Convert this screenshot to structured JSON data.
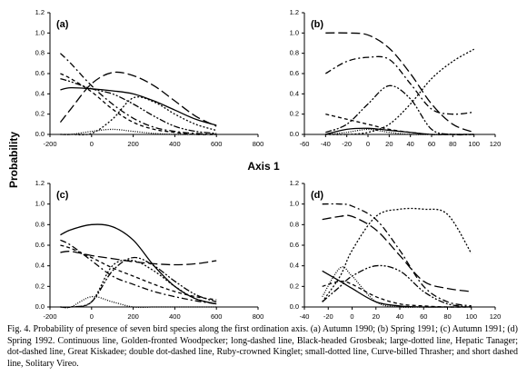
{
  "axis_title": "Axis 1",
  "y_title": "Probability",
  "caption": "Fig. 4. Probability of presence of seven bird species along the first ordination axis. (a) Autumn 1990; (b) Spring 1991; (c) Autumn 1991; (d) Spring 1992. Continuous line, Golden-fronted Woodpecker; long-dashed line, Black-headed Grosbeak; large-dotted line, Hepatic Tanager; dot-dashed line, Great Kiskadee; double dot-dashed line, Ruby-crowned Kinglet; small-dotted line, Curve-billed Thrasher; and short dashed line, Solitary Vireo.",
  "chart_data": [
    {
      "type": "line",
      "label": "(a)",
      "x": [
        -150,
        -100,
        0,
        100,
        200,
        300,
        400,
        500,
        600
      ],
      "xlim": [
        -200,
        800
      ],
      "xticks": [
        -200,
        0,
        200,
        400,
        600,
        800
      ],
      "ylim": [
        0,
        1.2
      ],
      "yticks": [
        {
          "value": 0,
          "label": "0.0"
        },
        0.2,
        0.4,
        0.6,
        0.8,
        {
          "value": 1,
          "label": "1.0"
        },
        1.2
      ],
      "series": [
        {
          "color": "#000",
          "dash": "none",
          "values": [
            0.44,
            0.46,
            0.45,
            0.43,
            0.4,
            0.33,
            0.24,
            0.15,
            0.09
          ]
        },
        {
          "color": "#000",
          "dash": "10 4",
          "values": [
            0.12,
            0.25,
            0.5,
            0.61,
            0.58,
            0.48,
            0.33,
            0.18,
            0.08
          ]
        },
        {
          "color": "#000",
          "dash": "2 2",
          "values": [
            0,
            0,
            0.01,
            0.15,
            0.36,
            0.32,
            0.2,
            0.1,
            0.04
          ]
        },
        {
          "color": "#000",
          "dash": "7 3 2 3",
          "values": [
            0.8,
            0.7,
            0.48,
            0.3,
            0.16,
            0.07,
            0.03,
            0.01,
            0
          ]
        },
        {
          "color": "#000",
          "dash": "7 2 2 2 2 2",
          "values": [
            0.55,
            0.52,
            0.45,
            0.4,
            0.3,
            0.18,
            0.08,
            0.03,
            0.01
          ]
        },
        {
          "color": "#000",
          "dash": "1 1.5",
          "values": [
            0,
            0,
            0.03,
            0.05,
            0.03,
            0.01,
            0,
            0,
            0
          ]
        },
        {
          "color": "#000",
          "dash": "4 3",
          "values": [
            0.6,
            0.55,
            0.42,
            0.25,
            0.12,
            0.05,
            0.02,
            0,
            0
          ]
        }
      ]
    },
    {
      "type": "line",
      "label": "(b)",
      "x": [
        -40,
        -20,
        0,
        20,
        40,
        60,
        80,
        100
      ],
      "xlim": [
        -60,
        120
      ],
      "xticks": [
        -60,
        -40,
        -20,
        0,
        20,
        40,
        60,
        80,
        100,
        120
      ],
      "ylim": [
        0,
        1.2
      ],
      "yticks": [
        {
          "value": 0,
          "label": "0.0"
        },
        0.2,
        0.4,
        0.6,
        0.8,
        {
          "value": 1,
          "label": "1.0"
        },
        1.2
      ],
      "series": [
        {
          "color": "#000",
          "dash": "none",
          "values": [
            0,
            0.05,
            0.06,
            0.04,
            0.02,
            0,
            0,
            0
          ]
        },
        {
          "color": "#000",
          "dash": "10 4",
          "values": [
            1,
            1,
            0.98,
            0.85,
            0.6,
            0.3,
            0.1,
            0.02
          ]
        },
        {
          "color": "#000",
          "dash": "2 2",
          "values": [
            0,
            0,
            0.02,
            0.1,
            0.3,
            0.55,
            0.72,
            0.84
          ]
        },
        {
          "color": "#000",
          "dash": "7 3 2 3",
          "values": [
            0.6,
            0.72,
            0.76,
            0.74,
            0.5,
            0.25,
            0.2,
            0.22
          ]
        },
        {
          "color": "#000",
          "dash": "7 2 2 2 2 2",
          "values": [
            0.02,
            0.1,
            0.3,
            0.48,
            0.35,
            0.05,
            0,
            0
          ]
        },
        {
          "color": "#000",
          "dash": "1 1.5",
          "values": [
            0,
            0.02,
            0.05,
            0.02,
            0,
            0,
            0,
            0
          ]
        },
        {
          "color": "#000",
          "dash": "4 3",
          "values": [
            0.2,
            0.15,
            0.1,
            0.05,
            0.02,
            0,
            0,
            0
          ]
        }
      ]
    },
    {
      "type": "line",
      "label": "(c)",
      "x": [
        -150,
        -100,
        0,
        100,
        200,
        300,
        400,
        500,
        600
      ],
      "xlim": [
        -200,
        800
      ],
      "xticks": [
        -200,
        0,
        200,
        400,
        600,
        800
      ],
      "ylim": [
        0,
        1.2
      ],
      "yticks": [
        {
          "value": 0,
          "label": "0.0"
        },
        0.2,
        0.4,
        0.6,
        0.8,
        {
          "value": 1,
          "label": "1.0"
        },
        1.2
      ],
      "series": [
        {
          "color": "#000",
          "dash": "none",
          "values": [
            0.7,
            0.75,
            0.8,
            0.78,
            0.65,
            0.4,
            0.2,
            0.08,
            0.03
          ]
        },
        {
          "color": "#000",
          "dash": "10 4",
          "values": [
            0.53,
            0.54,
            0.5,
            0.47,
            0.44,
            0.42,
            0.41,
            0.42,
            0.45
          ]
        },
        {
          "color": "#000",
          "dash": "2 2",
          "values": [
            0,
            0,
            0.05,
            0.4,
            0.45,
            0.35,
            0.2,
            0.08,
            0.03
          ]
        },
        {
          "color": "#000",
          "dash": "7 3 2 3",
          "values": [
            0.65,
            0.6,
            0.45,
            0.3,
            0.22,
            0.15,
            0.1,
            0.06,
            0.03
          ]
        },
        {
          "color": "#000",
          "dash": "7 2 2 2 2 2",
          "values": [
            0,
            0,
            0.05,
            0.35,
            0.48,
            0.4,
            0.25,
            0.12,
            0.05
          ]
        },
        {
          "color": "#000",
          "dash": "1 1.5",
          "values": [
            0,
            0,
            0.1,
            0.05,
            0,
            0,
            0,
            0,
            0
          ]
        },
        {
          "color": "#000",
          "dash": "4 3",
          "values": [
            0.6,
            0.57,
            0.48,
            0.38,
            0.3,
            0.22,
            0.15,
            0.1,
            0.07
          ]
        }
      ]
    },
    {
      "type": "line",
      "label": "(d)",
      "x": [
        -25,
        -10,
        0,
        20,
        40,
        60,
        80,
        100
      ],
      "xlim": [
        -40,
        120
      ],
      "xticks": [
        -40,
        -20,
        0,
        20,
        40,
        60,
        80,
        100,
        120
      ],
      "ylim": [
        0,
        1.2
      ],
      "yticks": [
        {
          "value": 0,
          "label": "0.0"
        },
        0.2,
        0.4,
        0.6,
        0.8,
        {
          "value": 1,
          "label": "1.0"
        },
        1.2
      ],
      "series": [
        {
          "color": "#000",
          "dash": "none",
          "values": [
            0.35,
            0.25,
            0.18,
            0.05,
            0.01,
            0,
            0,
            0
          ]
        },
        {
          "color": "#000",
          "dash": "10 4",
          "values": [
            0.85,
            0.88,
            0.88,
            0.75,
            0.5,
            0.25,
            0.18,
            0.15
          ]
        },
        {
          "color": "#000",
          "dash": "2 2",
          "values": [
            0.05,
            0.3,
            0.55,
            0.88,
            0.95,
            0.95,
            0.9,
            0.52
          ]
        },
        {
          "color": "#000",
          "dash": "7 3 2 3",
          "values": [
            1,
            1,
            0.98,
            0.85,
            0.55,
            0.2,
            0.05,
            0.01
          ]
        },
        {
          "color": "#000",
          "dash": "7 2 2 2 2 2",
          "values": [
            0.05,
            0.2,
            0.3,
            0.4,
            0.35,
            0.15,
            0.03,
            0
          ]
        },
        {
          "color": "#000",
          "dash": "1 1.5",
          "values": [
            0.1,
            0.38,
            0.3,
            0.05,
            0,
            0,
            0,
            0
          ]
        },
        {
          "color": "#000",
          "dash": "4 3",
          "values": [
            0.2,
            0.25,
            0.22,
            0.1,
            0.03,
            0.01,
            0,
            0
          ]
        }
      ]
    }
  ]
}
